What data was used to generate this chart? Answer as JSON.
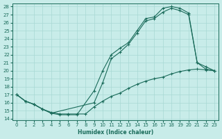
{
  "xlabel": "Humidex (Indice chaleur)",
  "background_color": "#c8ece9",
  "grid_color": "#a8d8d4",
  "line_color": "#1a6b5a",
  "xlim": [
    -0.5,
    23.5
  ],
  "ylim": [
    13.8,
    28.4
  ],
  "xticks": [
    0,
    1,
    2,
    3,
    4,
    5,
    6,
    7,
    8,
    9,
    10,
    11,
    12,
    13,
    14,
    15,
    16,
    17,
    18,
    19,
    20,
    21,
    22,
    23
  ],
  "yticks": [
    14,
    15,
    16,
    17,
    18,
    19,
    20,
    21,
    22,
    23,
    24,
    25,
    26,
    27,
    28
  ],
  "line1": {
    "x": [
      0,
      1,
      2,
      3,
      4,
      5,
      6,
      7,
      9,
      10,
      11,
      12,
      13,
      14,
      15,
      16,
      17,
      18,
      19,
      20,
      21,
      22,
      23
    ],
    "y": [
      17,
      16.2,
      15.8,
      15.2,
      14.7,
      14.5,
      14.5,
      14.5,
      17.5,
      20.0,
      22.0,
      22.8,
      23.5,
      25.0,
      26.5,
      26.7,
      27.8,
      28.0,
      27.8,
      27.2,
      21.0,
      20.2,
      20.0
    ]
  },
  "line2": {
    "x": [
      0,
      1,
      2,
      3,
      4,
      9,
      10,
      11,
      12,
      13,
      14,
      15,
      16,
      17,
      18,
      19,
      20,
      21,
      22,
      23
    ],
    "y": [
      17,
      16.2,
      15.8,
      15.2,
      14.7,
      16.0,
      18.5,
      21.5,
      22.3,
      23.3,
      24.7,
      26.2,
      26.5,
      27.3,
      27.8,
      27.5,
      27.0,
      21.0,
      20.5,
      20.0
    ]
  },
  "line3": {
    "x": [
      0,
      1,
      2,
      3,
      4,
      5,
      6,
      7,
      8,
      9,
      10,
      11,
      12,
      13,
      14,
      15,
      16,
      17,
      18,
      19,
      20,
      21,
      22,
      23
    ],
    "y": [
      17,
      16.2,
      15.8,
      15.2,
      14.8,
      14.6,
      14.6,
      14.6,
      14.6,
      15.5,
      16.2,
      16.8,
      17.2,
      17.8,
      18.3,
      18.7,
      19.0,
      19.2,
      19.6,
      19.9,
      20.1,
      20.2,
      20.1,
      20.0
    ]
  }
}
